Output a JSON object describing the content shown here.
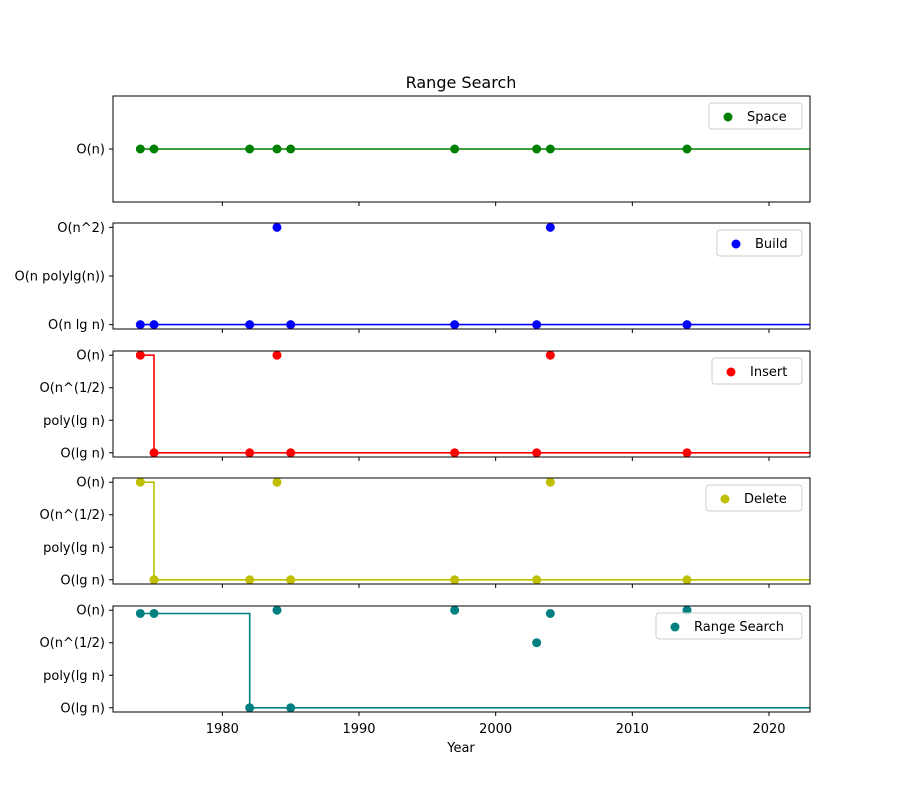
{
  "chart_data": {
    "type": "scatter",
    "title": "Range Search",
    "xlabel": "Year",
    "xlim": [
      1972,
      2023
    ],
    "xticks": [
      1980,
      1990,
      2000,
      2010,
      2020
    ],
    "legend_position": "top-right",
    "panels": [
      {
        "name": "Space",
        "color": "#008000",
        "yticks": [
          "O(n)"
        ],
        "ylim": [
          -2,
          2
        ],
        "points": [
          [
            1974,
            0
          ],
          [
            1975,
            0
          ],
          [
            1982,
            0
          ],
          [
            1984,
            0
          ],
          [
            1985,
            0
          ],
          [
            1997,
            0
          ],
          [
            2003,
            0
          ],
          [
            2004,
            0
          ],
          [
            2014,
            0
          ]
        ],
        "best_line": [
          [
            1974,
            0
          ],
          [
            2023,
            0
          ]
        ]
      },
      {
        "name": "Build",
        "color": "#0000ff",
        "yticks": [
          "O(n lg n)",
          "O(n polylg(n))",
          "O(n^2)"
        ],
        "ylim": [
          -0.09,
          2.09
        ],
        "points": [
          [
            1974,
            0
          ],
          [
            1975,
            0
          ],
          [
            1982,
            0
          ],
          [
            1984,
            2
          ],
          [
            1985,
            0
          ],
          [
            1997,
            0
          ],
          [
            2003,
            0
          ],
          [
            2004,
            2
          ],
          [
            2014,
            0
          ]
        ],
        "best_line": [
          [
            1974,
            0
          ],
          [
            2023,
            0
          ]
        ]
      },
      {
        "name": "Insert",
        "color": "#ff0000",
        "yticks": [
          "O(lg n)",
          "poly(lg n)",
          "O(n^(1/2)",
          "O(n)"
        ],
        "ylim": [
          -0.13,
          3.13
        ],
        "points": [
          [
            1974,
            3
          ],
          [
            1975,
            0
          ],
          [
            1982,
            0
          ],
          [
            1984,
            3
          ],
          [
            1985,
            0
          ],
          [
            1997,
            0
          ],
          [
            2003,
            0
          ],
          [
            2004,
            3
          ],
          [
            2014,
            0
          ]
        ],
        "best_line": [
          [
            1974,
            3
          ],
          [
            1975,
            3
          ],
          [
            1975,
            0
          ],
          [
            2023,
            0
          ]
        ]
      },
      {
        "name": "Delete",
        "color": "#bfbf00",
        "yticks": [
          "O(lg n)",
          "poly(lg n)",
          "O(n^(1/2)",
          "O(n)"
        ],
        "ylim": [
          -0.13,
          3.13
        ],
        "points": [
          [
            1974,
            3
          ],
          [
            1975,
            0
          ],
          [
            1982,
            0
          ],
          [
            1984,
            3
          ],
          [
            1985,
            0
          ],
          [
            1997,
            0
          ],
          [
            2003,
            0
          ],
          [
            2004,
            3
          ],
          [
            2014,
            0
          ]
        ],
        "best_line": [
          [
            1974,
            3
          ],
          [
            1975,
            3
          ],
          [
            1975,
            0
          ],
          [
            2023,
            0
          ]
        ]
      },
      {
        "name": "Range Search",
        "color": "#008080",
        "yticks": [
          "O(lg n)",
          "poly(lg n)",
          "O(n^(1/2)",
          "O(n)"
        ],
        "ylim": [
          -0.13,
          3.13
        ],
        "points": [
          [
            1974,
            2.9
          ],
          [
            1975,
            2.9
          ],
          [
            1982,
            0
          ],
          [
            1984,
            3.0
          ],
          [
            1985,
            0
          ],
          [
            1997,
            3.0
          ],
          [
            2003,
            2.0
          ],
          [
            2004,
            2.9
          ],
          [
            2014,
            3.0
          ]
        ],
        "best_line": [
          [
            1974,
            2.9
          ],
          [
            1982,
            2.9
          ],
          [
            1982,
            0
          ],
          [
            2023,
            0
          ]
        ]
      }
    ]
  }
}
